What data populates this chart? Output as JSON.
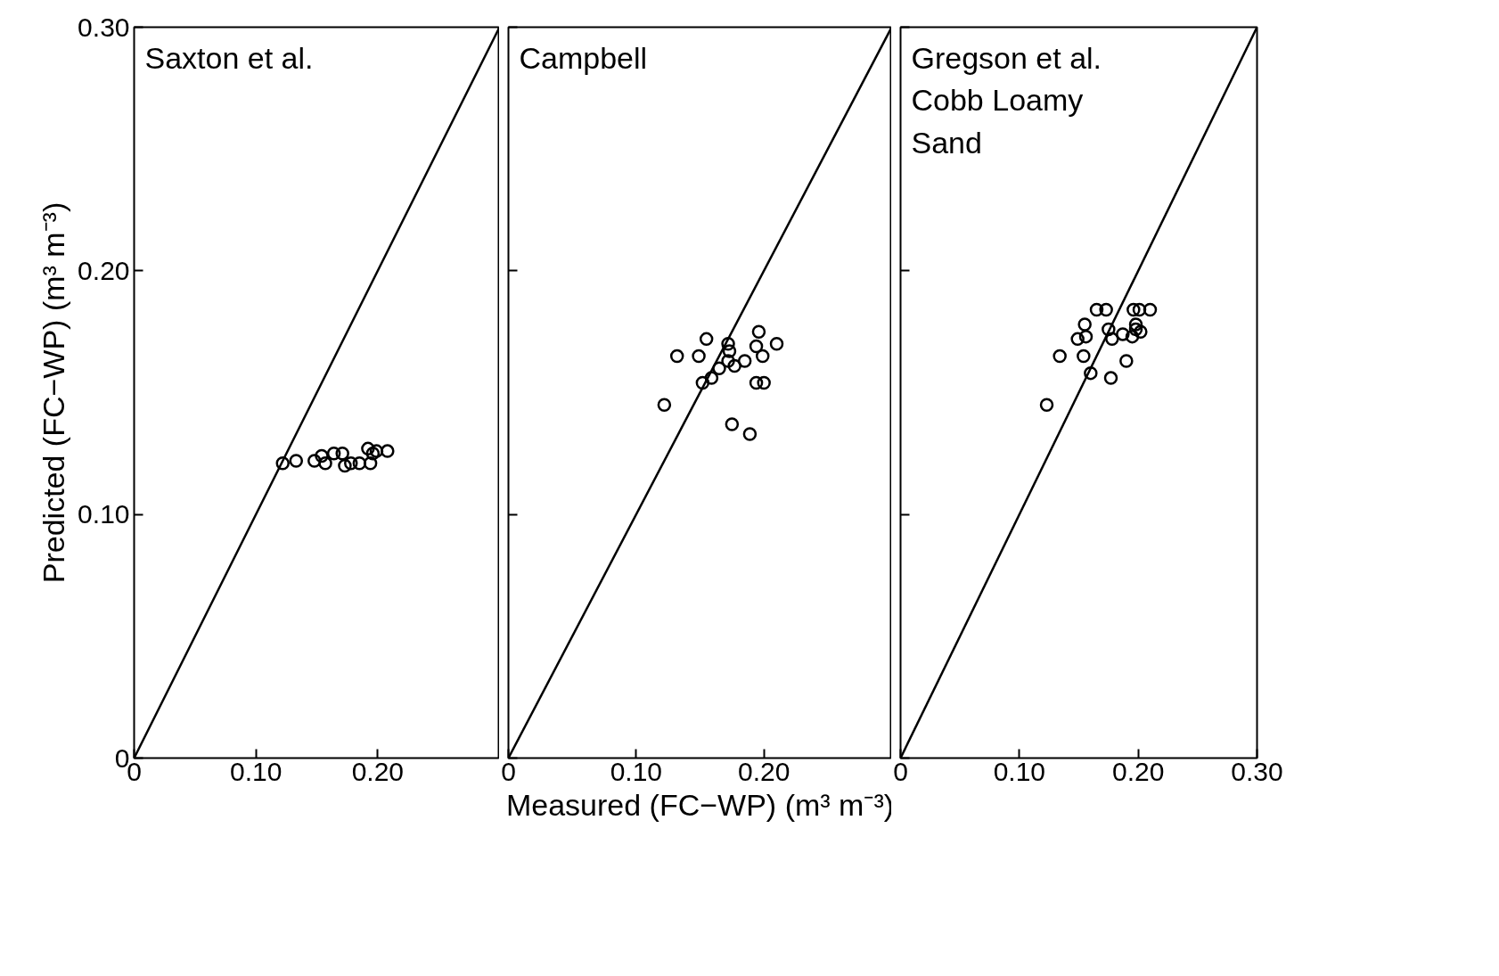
{
  "chart_data": [
    {
      "type": "scatter",
      "title": "Saxton et al.",
      "ylabel": "Predicted (FC−WP) (m³ m⁻³)",
      "xlim": [
        0,
        0.3
      ],
      "ylim": [
        0,
        0.3
      ],
      "xticks": [
        0,
        {
          "value": 0.1,
          "label": "0.10"
        },
        {
          "value": 0.2,
          "label": "0.20"
        }
      ],
      "yticks": [
        0,
        {
          "value": 0.1,
          "label": "0.10"
        },
        {
          "value": 0.2,
          "label": "0.20"
        },
        {
          "value": 0.3,
          "label": "0.30"
        }
      ],
      "grid": false,
      "series": [
        {
          "marker": "circle",
          "color": "#000000",
          "x": [
            0.122,
            0.133,
            0.148,
            0.154,
            0.157,
            0.164,
            0.171,
            0.173,
            0.178,
            0.185,
            0.192,
            0.196,
            0.199,
            0.208,
            0.194
          ],
          "values": [
            0.121,
            0.122,
            0.122,
            0.124,
            0.121,
            0.125,
            0.125,
            0.12,
            0.121,
            0.121,
            0.127,
            0.125,
            0.126,
            0.126,
            0.121
          ]
        },
        {
          "type": "line",
          "color": "#000000",
          "x": [
            0,
            0.3
          ],
          "values": [
            0,
            0.3
          ]
        }
      ]
    },
    {
      "type": "scatter",
      "title": "Campbell",
      "xlabel": "Measured (FC−WP) (m³ m⁻³)",
      "xlim": [
        0,
        0.3
      ],
      "ylim": [
        0,
        0.3
      ],
      "xticks": [
        0,
        {
          "value": 0.1,
          "label": "0.10"
        },
        {
          "value": 0.2,
          "label": "0.20"
        }
      ],
      "yticks": [
        {
          "value": 0,
          "label": null
        },
        {
          "value": 0.1,
          "label": null
        },
        {
          "value": 0.2,
          "label": null
        },
        {
          "value": 0.3,
          "label": null
        }
      ],
      "tick_labels": "x",
      "grid": false,
      "series": [
        {
          "marker": "circle",
          "color": "#000000",
          "x": [
            0.155,
            0.132,
            0.149,
            0.172,
            0.173,
            0.196,
            0.194,
            0.21,
            0.199,
            0.172,
            0.177,
            0.185,
            0.165,
            0.159,
            0.152,
            0.194,
            0.2,
            0.122,
            0.175,
            0.189
          ],
          "values": [
            0.172,
            0.165,
            0.165,
            0.17,
            0.167,
            0.175,
            0.169,
            0.17,
            0.165,
            0.163,
            0.161,
            0.163,
            0.16,
            0.156,
            0.154,
            0.154,
            0.154,
            0.145,
            0.137,
            0.133
          ]
        },
        {
          "type": "line",
          "color": "#000000",
          "x": [
            0,
            0.3
          ],
          "values": [
            0,
            0.3
          ]
        }
      ]
    },
    {
      "type": "scatter",
      "title": "Gregson et al.\nCobb Loamy\nSand",
      "xlim": [
        0,
        0.3
      ],
      "ylim": [
        0,
        0.3
      ],
      "xticks": [
        0,
        {
          "value": 0.1,
          "label": "0.10"
        },
        {
          "value": 0.2,
          "label": "0.20"
        },
        {
          "value": 0.3,
          "label": "0.30"
        }
      ],
      "yticks": [
        {
          "value": 0,
          "label": null
        },
        {
          "value": 0.1,
          "label": null
        },
        {
          "value": 0.2,
          "label": null
        },
        {
          "value": 0.3,
          "label": null
        }
      ],
      "tick_labels": "x",
      "grid": false,
      "series": [
        {
          "marker": "circle",
          "color": "#000000",
          "x": [
            0.165,
            0.173,
            0.196,
            0.201,
            0.21,
            0.155,
            0.198,
            0.198,
            0.175,
            0.156,
            0.149,
            0.178,
            0.187,
            0.195,
            0.202,
            0.134,
            0.154,
            0.19,
            0.16,
            0.177,
            0.123
          ],
          "values": [
            0.184,
            0.184,
            0.184,
            0.184,
            0.184,
            0.178,
            0.178,
            0.176,
            0.176,
            0.173,
            0.172,
            0.172,
            0.174,
            0.173,
            0.175,
            0.165,
            0.165,
            0.163,
            0.158,
            0.156,
            0.145
          ]
        },
        {
          "type": "line",
          "color": "#000000",
          "x": [
            0,
            0.3
          ],
          "values": [
            0,
            0.3
          ]
        }
      ]
    }
  ]
}
